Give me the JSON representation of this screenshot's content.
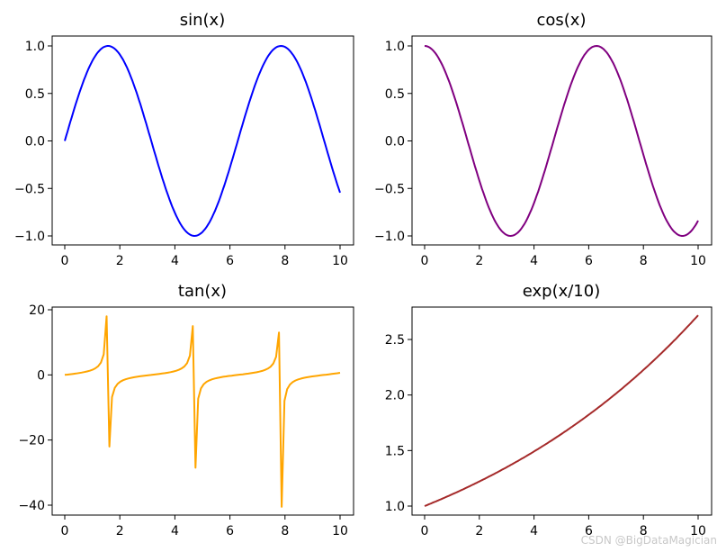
{
  "chart_data": [
    {
      "type": "line",
      "title": "sin(x)",
      "color": "#0000ff",
      "function": "sin",
      "xlim": [
        0,
        10
      ],
      "ylim": [
        -1.0,
        1.0
      ],
      "xticks": [
        "0",
        "2",
        "4",
        "6",
        "8",
        "10"
      ],
      "yticks": [
        "1.0",
        "0.5",
        "0.0",
        "−0.5",
        "−1.0"
      ],
      "x": [
        0,
        0.5,
        1,
        1.5,
        2,
        2.5,
        3,
        3.5,
        4,
        4.5,
        5,
        5.5,
        6,
        6.5,
        7,
        7.5,
        8,
        8.5,
        9,
        9.5,
        10
      ],
      "y": [
        0.0,
        0.479,
        0.841,
        0.997,
        0.909,
        0.598,
        0.141,
        -0.351,
        -0.757,
        -0.978,
        -0.959,
        -0.706,
        -0.279,
        0.215,
        0.657,
        0.938,
        0.989,
        0.798,
        0.412,
        -0.075,
        -0.544
      ]
    },
    {
      "type": "line",
      "title": "cos(x)",
      "color": "#800080",
      "function": "cos",
      "xlim": [
        0,
        10
      ],
      "ylim": [
        -1.0,
        1.0
      ],
      "xticks": [
        "0",
        "2",
        "4",
        "6",
        "8",
        "10"
      ],
      "yticks": [
        "1.0",
        "0.5",
        "0.0",
        "−0.5",
        "−1.0"
      ],
      "x": [
        0,
        0.5,
        1,
        1.5,
        2,
        2.5,
        3,
        3.5,
        4,
        4.5,
        5,
        5.5,
        6,
        6.5,
        7,
        7.5,
        8,
        8.5,
        9,
        9.5,
        10
      ],
      "y": [
        1.0,
        0.878,
        0.54,
        0.071,
        -0.416,
        -0.801,
        -0.99,
        -0.936,
        -0.654,
        -0.211,
        0.284,
        0.709,
        0.96,
        0.977,
        0.754,
        0.347,
        -0.146,
        -0.602,
        -0.911,
        -0.997,
        -0.839
      ]
    },
    {
      "type": "line",
      "title": "tan(x)",
      "color": "#ffa500",
      "function": "tan",
      "xlim": [
        0,
        10
      ],
      "ylim": [
        -40,
        20
      ],
      "xticks": [
        "0",
        "2",
        "4",
        "6",
        "8",
        "10"
      ],
      "yticks": [
        "20",
        "0",
        "−20",
        "−40"
      ],
      "peaks": [
        {
          "x": 1.52,
          "y": 18.0
        },
        {
          "x": 1.62,
          "y": -22.0
        },
        {
          "x": 4.65,
          "y": 15.0
        },
        {
          "x": 4.75,
          "y": -28.5
        },
        {
          "x": 7.78,
          "y": 13.0
        },
        {
          "x": 7.88,
          "y": -40.5
        }
      ],
      "x": [
        0,
        1,
        2,
        3,
        4,
        5,
        6,
        7,
        8,
        9,
        10
      ],
      "y": [
        0.0,
        1.557,
        -2.185,
        -0.143,
        1.158,
        -3.381,
        -0.291,
        0.871,
        -6.8,
        -0.452,
        0.648
      ]
    },
    {
      "type": "line",
      "title": "exp(x/10)",
      "color": "#a52a2a",
      "function": "exp10",
      "xlim": [
        0,
        10
      ],
      "ylim": [
        1.0,
        2.72
      ],
      "xticks": [
        "0",
        "2",
        "4",
        "6",
        "8",
        "10"
      ],
      "yticks": [
        "2.5",
        "2.0",
        "1.5",
        "1.0"
      ],
      "x": [
        0,
        1,
        2,
        3,
        4,
        5,
        6,
        7,
        8,
        9,
        10
      ],
      "y": [
        1.0,
        1.105,
        1.221,
        1.35,
        1.492,
        1.649,
        1.822,
        2.014,
        2.226,
        2.46,
        2.718
      ]
    }
  ],
  "watermark": "CSDN @BigDataMagician"
}
